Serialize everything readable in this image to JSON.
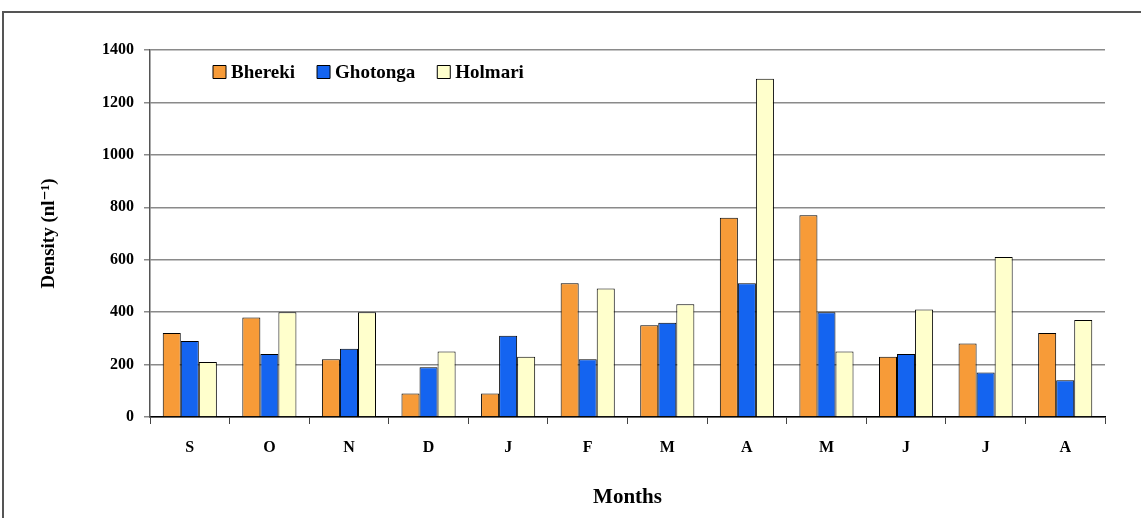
{
  "chart_data": {
    "type": "bar",
    "xlabel": "Months",
    "ylabel": "Density (nl⁻¹)",
    "categories": [
      "S",
      "O",
      "N",
      "D",
      "J",
      "F",
      "M",
      "A",
      "M",
      "J",
      "J",
      "A"
    ],
    "series": [
      {
        "name": "Bhereki",
        "color": "#f79b38",
        "values": [
          320,
          380,
          220,
          90,
          90,
          510,
          350,
          760,
          770,
          230,
          280,
          320
        ]
      },
      {
        "name": "Ghotonga",
        "color": "#1464f0",
        "values": [
          290,
          240,
          260,
          190,
          310,
          220,
          360,
          510,
          400,
          240,
          170,
          140
        ]
      },
      {
        "name": "Holmari",
        "color": "#ffffcc",
        "values": [
          210,
          400,
          400,
          250,
          230,
          490,
          430,
          1290,
          250,
          410,
          610,
          370
        ]
      }
    ],
    "ylim": [
      0,
      1400
    ],
    "yticks": [
      0,
      200,
      400,
      600,
      800,
      1000,
      1200,
      1400
    ],
    "grid": "y",
    "legend": "top left"
  }
}
